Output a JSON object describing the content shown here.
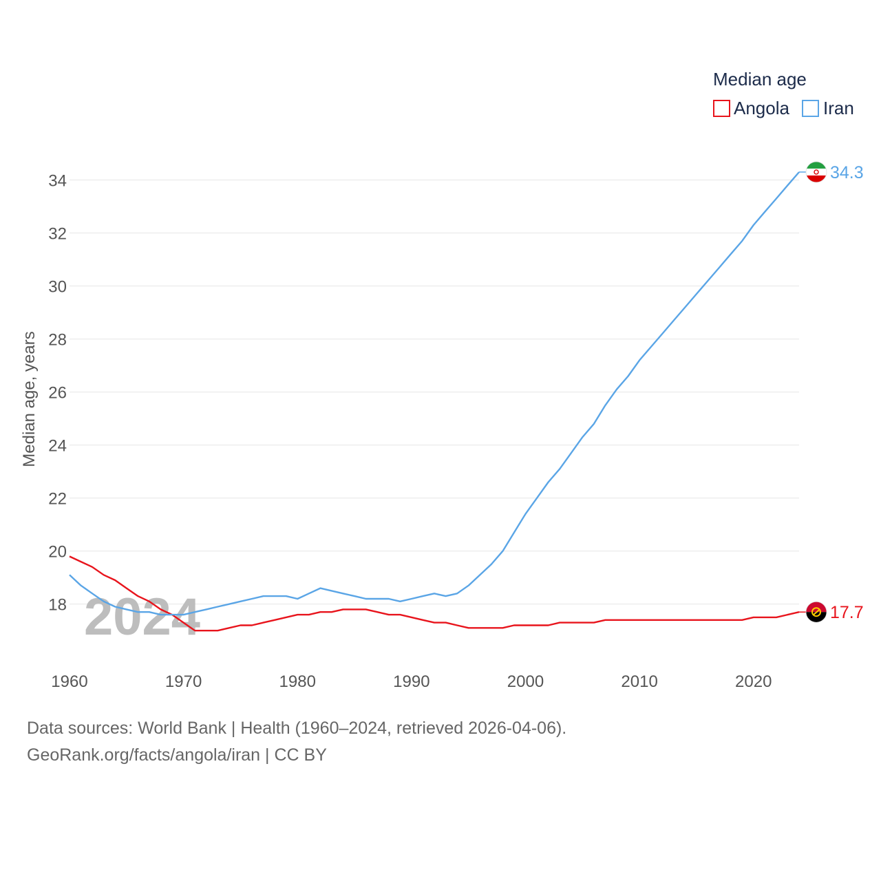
{
  "chart_data": {
    "type": "line",
    "title": "Median age",
    "ylabel": "Median age, years",
    "xlabel": "",
    "xlim": [
      1960,
      2024
    ],
    "ylim": [
      16.2,
      35
    ],
    "x_ticks": [
      1960,
      1970,
      1980,
      1990,
      2000,
      2010,
      2020
    ],
    "y_ticks": [
      18,
      20,
      22,
      24,
      26,
      28,
      30,
      32,
      34
    ],
    "watermark_year": "2024",
    "x": [
      1960,
      1961,
      1962,
      1963,
      1964,
      1965,
      1966,
      1967,
      1968,
      1969,
      1970,
      1971,
      1972,
      1973,
      1974,
      1975,
      1976,
      1977,
      1978,
      1979,
      1980,
      1981,
      1982,
      1983,
      1984,
      1985,
      1986,
      1987,
      1988,
      1989,
      1990,
      1991,
      1992,
      1993,
      1994,
      1995,
      1996,
      1997,
      1998,
      1999,
      2000,
      2001,
      2002,
      2003,
      2004,
      2005,
      2006,
      2007,
      2008,
      2009,
      2010,
      2011,
      2012,
      2013,
      2014,
      2015,
      2016,
      2017,
      2018,
      2019,
      2020,
      2021,
      2022,
      2023,
      2024
    ],
    "series": [
      {
        "name": "Angola",
        "color": "#e8141c",
        "flag": "angola-flag",
        "end_label": "17.7",
        "values": [
          19.8,
          19.6,
          19.4,
          19.1,
          18.9,
          18.6,
          18.3,
          18.1,
          17.8,
          17.6,
          17.3,
          17.0,
          17.0,
          17.0,
          17.1,
          17.2,
          17.2,
          17.3,
          17.4,
          17.5,
          17.6,
          17.6,
          17.7,
          17.7,
          17.8,
          17.8,
          17.8,
          17.7,
          17.6,
          17.6,
          17.5,
          17.4,
          17.3,
          17.3,
          17.2,
          17.1,
          17.1,
          17.1,
          17.1,
          17.2,
          17.2,
          17.2,
          17.2,
          17.3,
          17.3,
          17.3,
          17.3,
          17.4,
          17.4,
          17.4,
          17.4,
          17.4,
          17.4,
          17.4,
          17.4,
          17.4,
          17.4,
          17.4,
          17.4,
          17.4,
          17.5,
          17.5,
          17.5,
          17.6,
          17.7
        ]
      },
      {
        "name": "Iran",
        "color": "#5aa5e6",
        "flag": "iran-flag",
        "end_label": "34.3",
        "values": [
          19.1,
          18.7,
          18.4,
          18.1,
          17.9,
          17.8,
          17.7,
          17.7,
          17.6,
          17.6,
          17.6,
          17.7,
          17.8,
          17.9,
          18.0,
          18.1,
          18.2,
          18.3,
          18.3,
          18.3,
          18.2,
          18.4,
          18.6,
          18.5,
          18.4,
          18.3,
          18.2,
          18.2,
          18.2,
          18.1,
          18.2,
          18.3,
          18.4,
          18.3,
          18.4,
          18.7,
          19.1,
          19.5,
          20.0,
          20.7,
          21.4,
          22.0,
          22.6,
          23.1,
          23.7,
          24.3,
          24.8,
          25.5,
          26.1,
          26.6,
          27.2,
          27.7,
          28.2,
          28.7,
          29.2,
          29.7,
          30.2,
          30.7,
          31.2,
          31.7,
          32.3,
          32.8,
          33.3,
          33.8,
          34.3
        ]
      }
    ]
  },
  "legend": {
    "title": "Median age"
  },
  "footer": {
    "line1": "Data sources: World Bank | Health (1960–2024, retrieved 2026-04-06).",
    "line2": "GeoRank.org/facts/angola/iran | CC BY"
  }
}
